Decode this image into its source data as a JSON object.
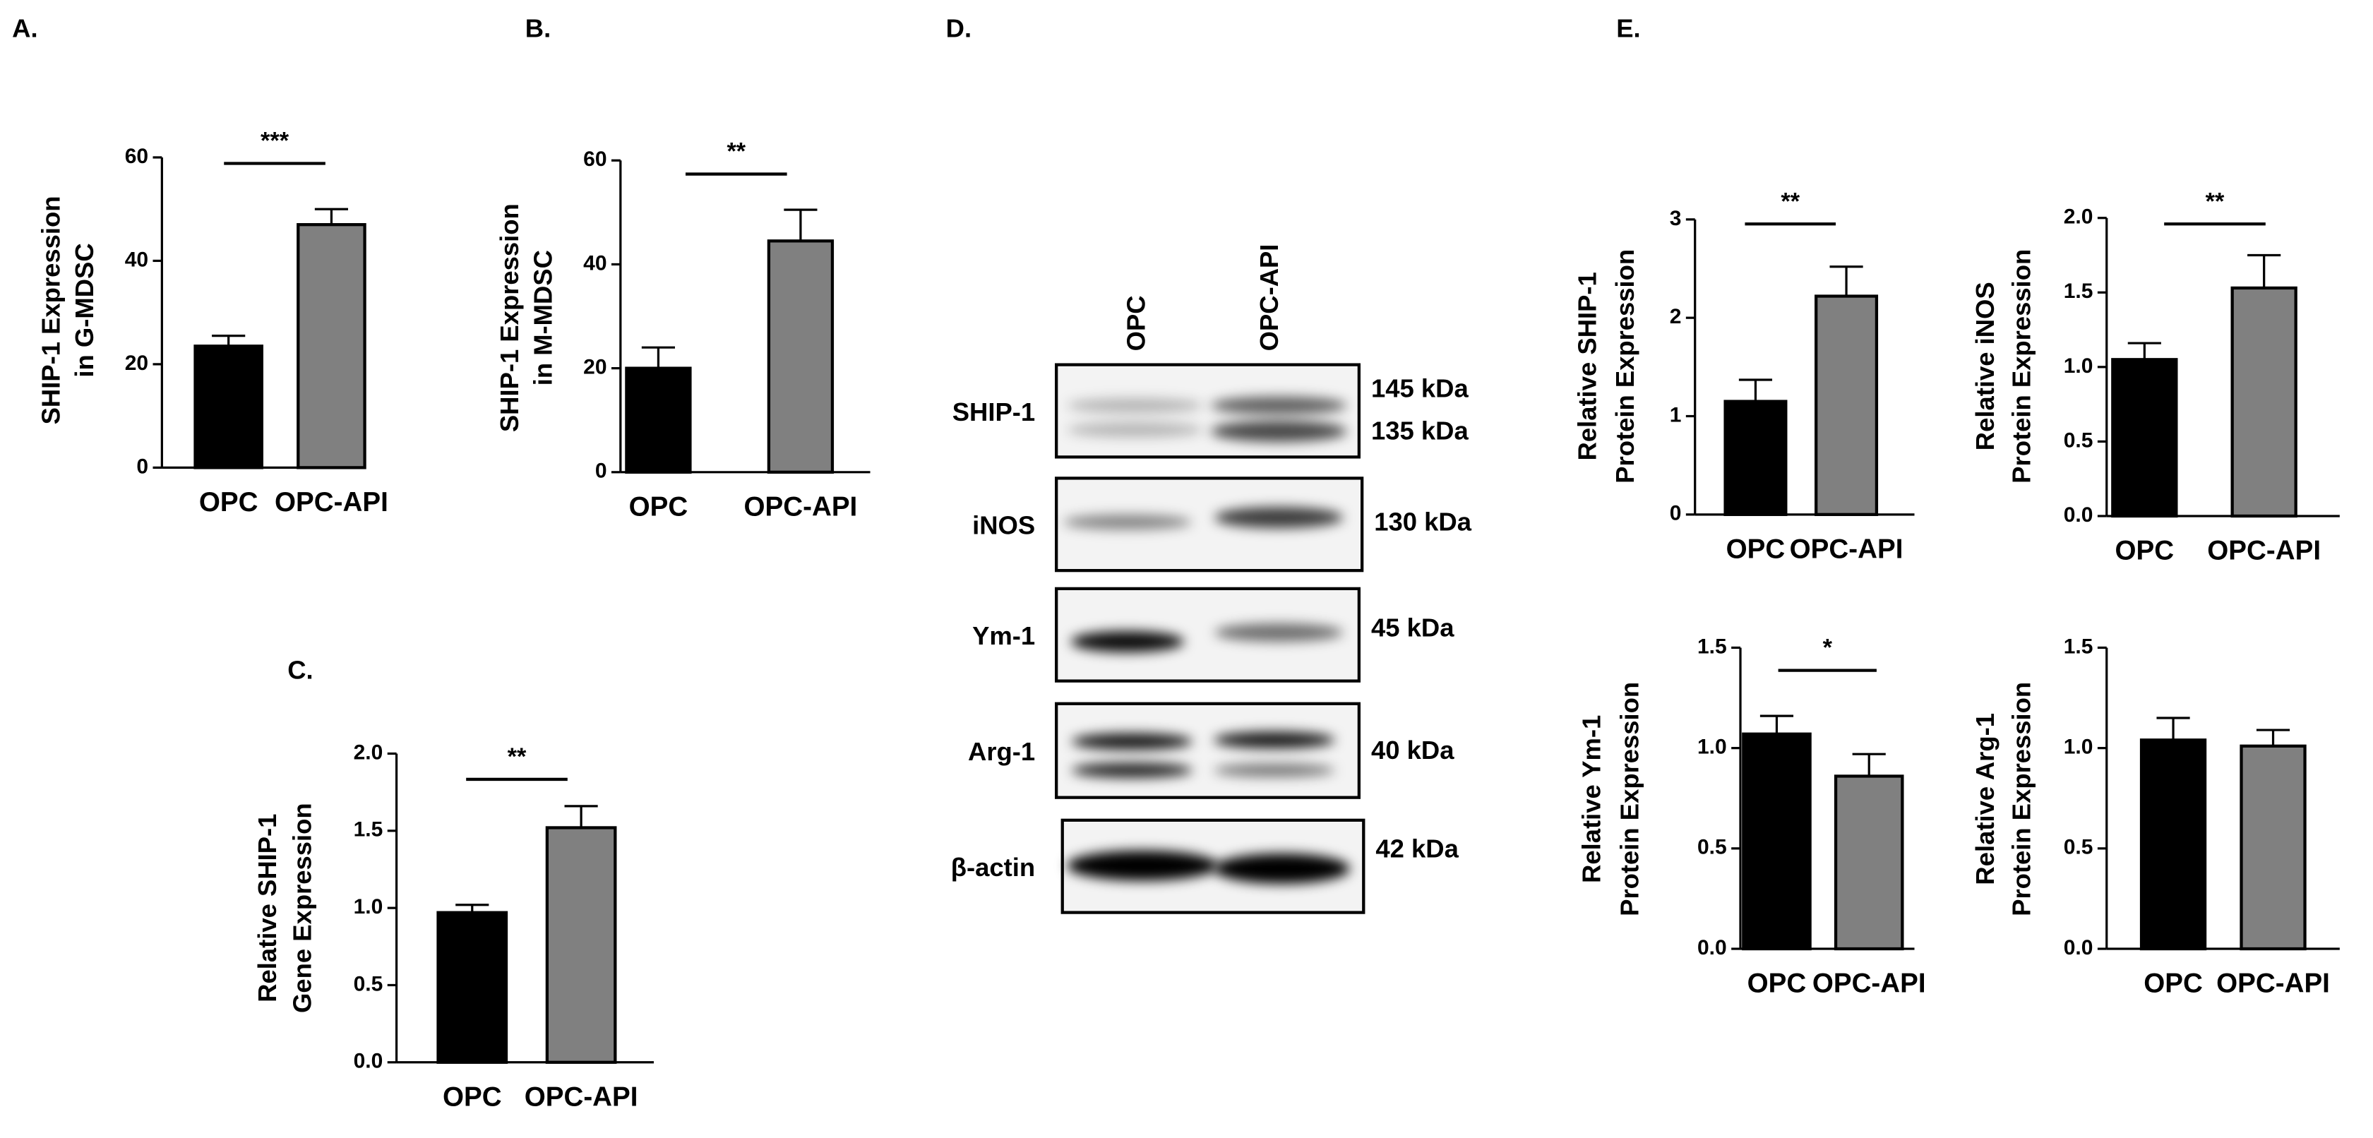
{
  "chart_data": [
    {
      "type": "bar",
      "panel_label": "A.",
      "ylabel": [
        "SHIP-1 Expression",
        "in G-MDSC"
      ],
      "categories": [
        "OPC",
        "OPC-API"
      ],
      "values": [
        23.5,
        47
      ],
      "errors": [
        2,
        3
      ],
      "colors": [
        "#000000",
        "#808080"
      ],
      "ylim": [
        0,
        60
      ],
      "yticks": [
        0,
        20,
        40,
        60
      ],
      "significance": "***"
    },
    {
      "type": "bar",
      "panel_label": "B.",
      "ylabel": [
        "SHIP-1 Expression",
        "in M-MDSC"
      ],
      "categories": [
        "OPC",
        "OPC-API"
      ],
      "values": [
        20,
        44.5
      ],
      "errors": [
        4,
        6
      ],
      "colors": [
        "#000000",
        "#808080"
      ],
      "ylim": [
        0,
        60
      ],
      "yticks": [
        0,
        20,
        40,
        60
      ],
      "significance": "**"
    },
    {
      "type": "bar",
      "panel_label": "C.",
      "ylabel": [
        "Relative SHIP-1",
        "Gene Expression"
      ],
      "categories": [
        "OPC",
        "OPC-API"
      ],
      "values": [
        0.97,
        1.52
      ],
      "errors": [
        0.05,
        0.14
      ],
      "colors": [
        "#000000",
        "#808080"
      ],
      "ylim": [
        0,
        2
      ],
      "yticks": [
        {
          "value": 0,
          "label": "0.0"
        },
        0.5,
        {
          "value": 1,
          "label": "1.0"
        },
        1.5,
        {
          "value": 2,
          "label": "2.0"
        }
      ],
      "significance": "**"
    },
    {
      "type": "bar",
      "panel_label": "E.",
      "ylabel": [
        "Relative SHIP-1",
        "Protein Expression"
      ],
      "categories": [
        "OPC",
        "OPC-API"
      ],
      "values": [
        1.15,
        2.22
      ],
      "errors": [
        0.22,
        0.3
      ],
      "colors": [
        "#000000",
        "#808080"
      ],
      "ylim": [
        0,
        3
      ],
      "yticks": [
        0,
        1,
        2,
        3
      ],
      "significance": "**"
    },
    {
      "type": "bar",
      "ylabel": [
        "Relative iNOS",
        "Protein Expression"
      ],
      "categories": [
        "OPC",
        "OPC-API"
      ],
      "values": [
        1.05,
        1.53
      ],
      "errors": [
        0.11,
        0.22
      ],
      "colors": [
        "#000000",
        "#808080"
      ],
      "ylim": [
        0,
        2
      ],
      "yticks": [
        {
          "value": 0,
          "label": "0.0"
        },
        0.5,
        {
          "value": 1,
          "label": "1.0"
        },
        1.5,
        {
          "value": 2,
          "label": "2.0"
        }
      ],
      "significance": "**"
    },
    {
      "type": "bar",
      "ylabel": [
        "Relative Ym-1",
        "Protein Expression"
      ],
      "categories": [
        "OPC",
        "OPC-API"
      ],
      "values": [
        1.07,
        0.86
      ],
      "errors": [
        0.09,
        0.11
      ],
      "colors": [
        "#000000",
        "#808080"
      ],
      "ylim": [
        0,
        1.5
      ],
      "yticks": [
        {
          "value": 0,
          "label": "0.0"
        },
        0.5,
        {
          "value": 1,
          "label": "1.0"
        },
        1.5
      ],
      "significance": "*"
    },
    {
      "type": "bar",
      "ylabel": [
        "Relative Arg-1",
        "Protein Expression"
      ],
      "categories": [
        "OPC",
        "OPC-API"
      ],
      "values": [
        1.04,
        1.01
      ],
      "errors": [
        0.11,
        0.08
      ],
      "colors": [
        "#000000",
        "#808080"
      ],
      "ylim": [
        0,
        1.5
      ],
      "yticks": [
        {
          "value": 0,
          "label": "0.0"
        },
        0.5,
        {
          "value": 1,
          "label": "1.0"
        },
        1.5
      ]
    }
  ],
  "blot": {
    "panel_label": "D.",
    "lanes": [
      "OPC",
      "OPC-API"
    ],
    "rows": [
      {
        "protein": "SHIP-1",
        "sizes": [
          "145 kDa",
          "135 kDa"
        ]
      },
      {
        "protein": "iNOS",
        "sizes": [
          "130 kDa"
        ]
      },
      {
        "protein": "Ym-1",
        "sizes": [
          "45 kDa"
        ]
      },
      {
        "protein": "Arg-1",
        "sizes": [
          "40 kDa"
        ]
      },
      {
        "protein": "β-actin",
        "sizes": [
          "42 kDa"
        ]
      }
    ]
  }
}
